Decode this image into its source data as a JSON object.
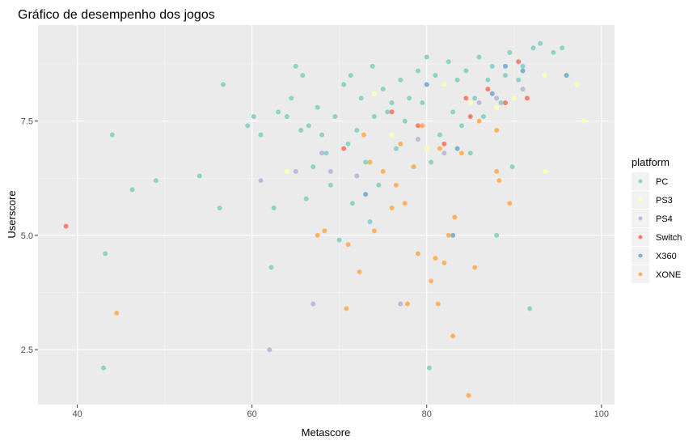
{
  "chart_data": {
    "type": "scatter",
    "title": "Gráfico de desempenho dos jogos",
    "xlabel": "Metascore",
    "ylabel": "Userscore",
    "xlim": [
      35.5,
      101.5
    ],
    "ylim": [
      1.3,
      9.6
    ],
    "x_ticks": [
      40,
      60,
      80,
      100
    ],
    "y_ticks": [
      2.5,
      5.0,
      7.5
    ],
    "x_tick_labels": [
      "40",
      "60",
      "80",
      "100"
    ],
    "y_tick_labels": [
      "2.5",
      "5.0",
      "7.5"
    ],
    "grid": true,
    "legend": {
      "title": "platform",
      "position": "right"
    },
    "colors": {
      "PC": "#8dd3c7",
      "PS3": "#ffffb3",
      "PS4": "#bebada",
      "Switch": "#fb8072",
      "X360": "#80b1d3",
      "XONE": "#fdb462"
    },
    "series": [
      {
        "name": "PC",
        "points": [
          [
            43.0,
            2.1
          ],
          [
            43.2,
            4.6
          ],
          [
            44.0,
            7.2
          ],
          [
            46.3,
            6.0
          ],
          [
            49.0,
            6.2
          ],
          [
            54.0,
            6.3
          ],
          [
            56.3,
            5.6
          ],
          [
            56.7,
            8.3
          ],
          [
            59.5,
            7.4
          ],
          [
            60.2,
            7.6
          ],
          [
            61.0,
            7.2
          ],
          [
            62.2,
            4.3
          ],
          [
            62.5,
            5.6
          ],
          [
            63.0,
            7.7
          ],
          [
            64.0,
            7.6
          ],
          [
            64.5,
            8.0
          ],
          [
            65.0,
            8.7
          ],
          [
            65.6,
            7.3
          ],
          [
            65.8,
            8.5
          ],
          [
            66.2,
            5.8
          ],
          [
            66.5,
            7.4
          ],
          [
            67.0,
            6.5
          ],
          [
            67.5,
            7.8
          ],
          [
            68.0,
            7.2
          ],
          [
            68.5,
            6.8
          ],
          [
            69.0,
            6.1
          ],
          [
            69.5,
            7.6
          ],
          [
            70.0,
            4.9
          ],
          [
            70.5,
            8.3
          ],
          [
            71.0,
            7.0
          ],
          [
            71.3,
            8.5
          ],
          [
            71.5,
            5.7
          ],
          [
            72.0,
            7.3
          ],
          [
            72.5,
            8.0
          ],
          [
            73.0,
            6.6
          ],
          [
            73.5,
            5.3
          ],
          [
            73.8,
            8.7
          ],
          [
            74.0,
            7.6
          ],
          [
            74.5,
            6.1
          ],
          [
            75.0,
            8.2
          ],
          [
            75.5,
            7.7
          ],
          [
            76.0,
            7.9
          ],
          [
            76.5,
            6.9
          ],
          [
            77.0,
            8.4
          ],
          [
            77.5,
            7.5
          ],
          [
            78.0,
            8.0
          ],
          [
            78.5,
            6.5
          ],
          [
            79.0,
            8.6
          ],
          [
            79.5,
            7.9
          ],
          [
            80.0,
            8.9
          ],
          [
            80.3,
            2.1
          ],
          [
            80.5,
            6.6
          ],
          [
            81.0,
            8.5
          ],
          [
            81.5,
            7.2
          ],
          [
            82.0,
            8.3
          ],
          [
            82.5,
            8.8
          ],
          [
            83.0,
            7.7
          ],
          [
            83.5,
            8.4
          ],
          [
            84.0,
            7.4
          ],
          [
            84.5,
            8.6
          ],
          [
            85.0,
            6.8
          ],
          [
            85.5,
            8.0
          ],
          [
            86.0,
            8.9
          ],
          [
            86.5,
            7.6
          ],
          [
            87.0,
            8.4
          ],
          [
            87.5,
            8.7
          ],
          [
            88.0,
            5.0
          ],
          [
            88.5,
            7.9
          ],
          [
            89.0,
            8.5
          ],
          [
            89.5,
            9.0
          ],
          [
            89.8,
            6.5
          ],
          [
            90.5,
            8.4
          ],
          [
            91.0,
            8.7
          ],
          [
            91.8,
            3.4
          ],
          [
            92.2,
            9.1
          ],
          [
            93.0,
            9.2
          ],
          [
            94.5,
            9.0
          ],
          [
            95.5,
            9.1
          ]
        ]
      },
      {
        "name": "PS3",
        "points": [
          [
            64.0,
            6.4
          ],
          [
            74.0,
            8.1
          ],
          [
            76.0,
            7.2
          ],
          [
            80.0,
            6.9
          ],
          [
            82.0,
            8.3
          ],
          [
            84.0,
            6.8
          ],
          [
            85.0,
            7.9
          ],
          [
            88.0,
            7.8
          ],
          [
            90.0,
            8.0
          ],
          [
            91.0,
            8.2
          ],
          [
            93.5,
            8.5
          ],
          [
            93.6,
            6.4
          ],
          [
            97.2,
            8.3
          ],
          [
            98.0,
            7.5
          ]
        ]
      },
      {
        "name": "PS4",
        "points": [
          [
            62.0,
            2.5
          ],
          [
            67.0,
            3.5
          ],
          [
            68.0,
            6.8
          ],
          [
            69.0,
            6.4
          ],
          [
            65.0,
            6.4
          ],
          [
            61.0,
            6.2
          ],
          [
            72.0,
            6.3
          ],
          [
            77.0,
            3.5
          ],
          [
            79.0,
            7.1
          ],
          [
            82.0,
            6.8
          ],
          [
            86.0,
            7.9
          ],
          [
            88.0,
            8.0
          ],
          [
            89.0,
            7.9
          ],
          [
            91.0,
            8.2
          ]
        ]
      },
      {
        "name": "Switch",
        "points": [
          [
            38.7,
            5.2
          ],
          [
            70.5,
            6.9
          ],
          [
            76.0,
            7.7
          ],
          [
            79.0,
            7.4
          ],
          [
            82.0,
            7.0
          ],
          [
            84.5,
            8.0
          ],
          [
            85.0,
            7.6
          ],
          [
            87.0,
            8.2
          ],
          [
            89.0,
            7.9
          ],
          [
            90.5,
            8.8
          ],
          [
            91.5,
            8.0
          ]
        ]
      },
      {
        "name": "X360",
        "points": [
          [
            73.0,
            5.9
          ],
          [
            80.0,
            8.3
          ],
          [
            83.0,
            5.0
          ],
          [
            83.5,
            6.9
          ],
          [
            87.5,
            8.1
          ],
          [
            89.0,
            8.7
          ],
          [
            91.0,
            8.6
          ],
          [
            96.0,
            8.5
          ]
        ]
      },
      {
        "name": "XONE",
        "points": [
          [
            44.5,
            3.3
          ],
          [
            67.5,
            5.0
          ],
          [
            68.3,
            5.1
          ],
          [
            70.8,
            3.4
          ],
          [
            71.0,
            4.8
          ],
          [
            72.3,
            4.2
          ],
          [
            72.8,
            7.2
          ],
          [
            73.5,
            6.6
          ],
          [
            74.0,
            5.1
          ],
          [
            75.0,
            6.4
          ],
          [
            76.0,
            5.6
          ],
          [
            76.5,
            6.1
          ],
          [
            77.0,
            7.0
          ],
          [
            77.5,
            5.7
          ],
          [
            77.8,
            3.5
          ],
          [
            78.5,
            6.5
          ],
          [
            79.0,
            4.6
          ],
          [
            79.5,
            7.4
          ],
          [
            80.5,
            4.0
          ],
          [
            81.0,
            4.5
          ],
          [
            81.3,
            3.5
          ],
          [
            81.5,
            6.9
          ],
          [
            82.0,
            4.4
          ],
          [
            82.5,
            5.0
          ],
          [
            83.0,
            2.8
          ],
          [
            83.2,
            5.4
          ],
          [
            84.0,
            6.8
          ],
          [
            84.8,
            1.5
          ],
          [
            85.5,
            4.3
          ],
          [
            86.0,
            7.5
          ],
          [
            88.0,
            7.3
          ],
          [
            88.3,
            6.2
          ],
          [
            89.5,
            5.7
          ],
          [
            88.0,
            6.4
          ]
        ]
      }
    ]
  }
}
